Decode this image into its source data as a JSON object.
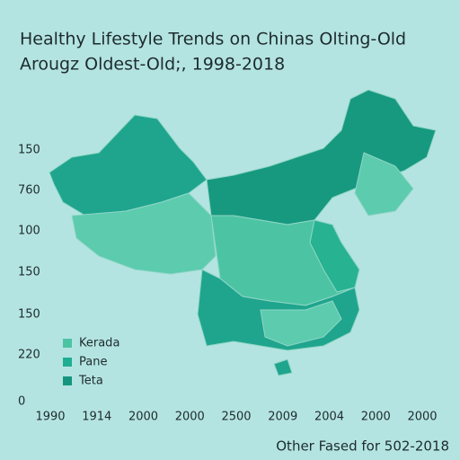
{
  "header": {
    "title": [
      "Healthy Lifestyle Trends on Chinas Olting-Old",
      "Arougz Oldest-Old;, 1998-2018"
    ]
  },
  "y_axis_labels": [
    "150",
    "760",
    "100",
    "150",
    "150",
    "220",
    "0"
  ],
  "x_axis_labels": [
    "1990",
    "1914",
    "2000",
    "2000",
    "2500",
    "2009",
    "2004",
    "2000",
    "2000"
  ],
  "legend": [
    {
      "label": "Kerada",
      "color": "#4cc4a4"
    },
    {
      "label": "Pane",
      "color": "#1fae92"
    },
    {
      "label": "Teta",
      "color": "#15957f"
    }
  ],
  "footer": "Other Fased for 502-2018"
}
